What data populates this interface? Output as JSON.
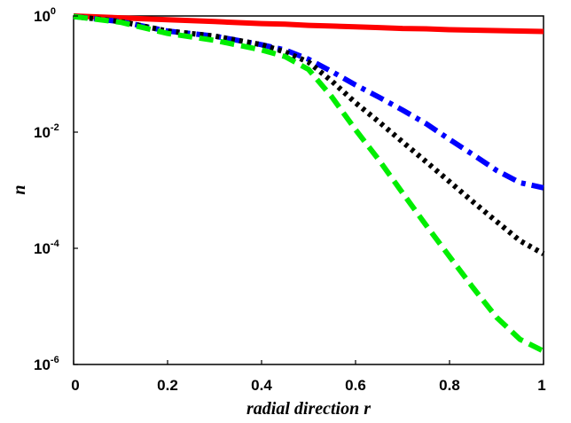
{
  "chart_data": {
    "type": "line",
    "title": "",
    "xlabel": "radial direction r",
    "ylabel": "n",
    "xlim": [
      0,
      1
    ],
    "ylim": [
      1e-06,
      1
    ],
    "y_scale": "log",
    "grid": false,
    "x_ticks": [
      "0",
      "0.2",
      "0.4",
      "0.6",
      "0.8",
      "1"
    ],
    "y_ticks": [
      {
        "base": "10",
        "exp": "0",
        "value": 1
      },
      {
        "base": "10",
        "exp": "-2",
        "value": 0.01
      },
      {
        "base": "10",
        "exp": "-4",
        "value": 0.0001
      },
      {
        "base": "10",
        "exp": "-6",
        "value": 1e-06
      }
    ],
    "x": [
      0,
      0.1,
      0.2,
      0.3,
      0.4,
      0.45,
      0.5,
      0.55,
      0.6,
      0.65,
      0.7,
      0.75,
      0.8,
      0.85,
      0.9,
      0.95,
      1.0
    ],
    "series": [
      {
        "color": "#ff0000",
        "style": "solid",
        "values": [
          1.0,
          0.93,
          0.86,
          0.8,
          0.74,
          0.72,
          0.69,
          0.67,
          0.65,
          0.63,
          0.61,
          0.6,
          0.58,
          0.57,
          0.56,
          0.55,
          0.54
        ]
      },
      {
        "color": "#0000ff",
        "style": "dashdot",
        "values": [
          0.98,
          0.8,
          0.55,
          0.45,
          0.32,
          0.26,
          0.18,
          0.11,
          0.065,
          0.04,
          0.024,
          0.014,
          0.0075,
          0.0041,
          0.0022,
          0.00135,
          0.0011
        ]
      },
      {
        "color": "#000000",
        "style": "dotted",
        "values": [
          0.98,
          0.8,
          0.55,
          0.45,
          0.32,
          0.24,
          0.16,
          0.075,
          0.032,
          0.015,
          0.0068,
          0.0031,
          0.0014,
          0.00063,
          0.00029,
          0.000135,
          8e-05
        ]
      },
      {
        "color": "#00ee00",
        "style": "dashed",
        "values": [
          0.98,
          0.78,
          0.5,
          0.38,
          0.26,
          0.2,
          0.12,
          0.04,
          0.011,
          0.0033,
          0.0009,
          0.00025,
          7.2e-05,
          2.1e-05,
          6.5e-06,
          2.7e-06,
          1.7e-06
        ]
      }
    ]
  }
}
